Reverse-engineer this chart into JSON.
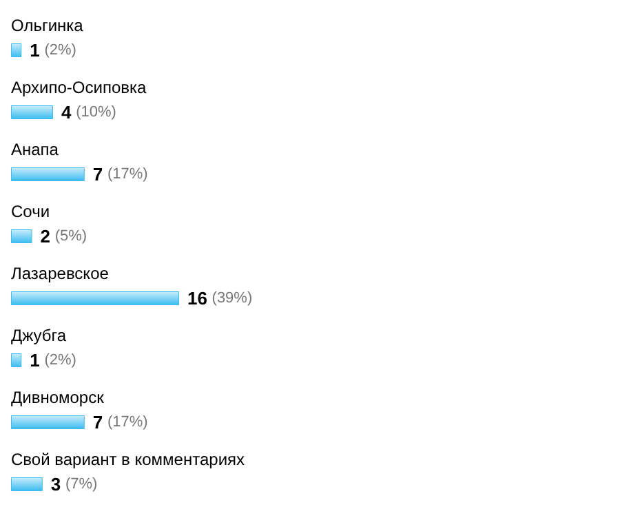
{
  "chart_data": {
    "type": "bar",
    "orientation": "horizontal",
    "categories": [
      "Ольгинка",
      "Архипо-Осиповка",
      "Анапа",
      "Сочи",
      "Лазаревское",
      "Джубга",
      "Дивноморск",
      "Свой вариант в комментариях"
    ],
    "values": [
      1,
      4,
      7,
      2,
      16,
      1,
      7,
      3
    ],
    "value_labels": [
      "1 (2%)",
      "4 (10%)",
      "7 (17%)",
      "2 (5%)",
      "16 (39%)",
      "1 (2%)",
      "7 (17%)",
      "3 (7%)"
    ],
    "color": "#3cbcf0"
  }
}
